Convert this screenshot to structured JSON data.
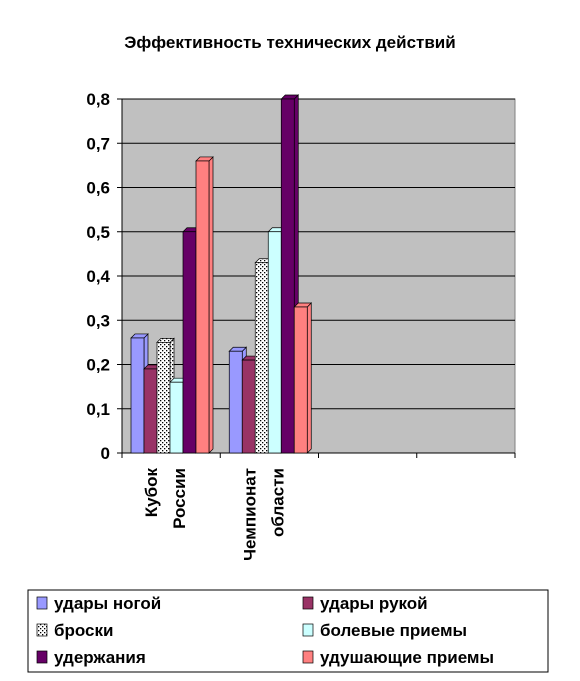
{
  "chart_data": {
    "type": "bar",
    "title": "Эффективность технических действий",
    "categories": [
      "Кубок России",
      "Чемпионат области",
      null,
      null
    ],
    "series": [
      {
        "name": "удары ногой",
        "color": "#9999ff",
        "values": [
          0.26,
          0.23,
          null,
          null
        ]
      },
      {
        "name": "удары рукой",
        "color": "#993366",
        "values": [
          0.19,
          0.21,
          null,
          null
        ]
      },
      {
        "name": "броски",
        "color": "dots",
        "values": [
          0.25,
          0.43,
          null,
          null
        ]
      },
      {
        "name": "болевые приемы",
        "color": "#ccffff",
        "values": [
          0.16,
          0.5,
          null,
          null
        ]
      },
      {
        "name": "удержания",
        "color": "#660066",
        "values": [
          0.5,
          0.8,
          null,
          null
        ]
      },
      {
        "name": "удушающие приемы",
        "color": "#ff8080",
        "values": [
          0.66,
          0.33,
          null,
          null
        ]
      }
    ],
    "ylim": [
      0,
      0.8
    ],
    "yticks": [
      0,
      {
        "value": 0.1,
        "label": "0,1"
      },
      {
        "value": 0.2,
        "label": "0,2"
      },
      {
        "value": 0.3,
        "label": "0,3"
      },
      {
        "value": 0.4,
        "label": "0,4"
      },
      {
        "value": 0.5,
        "label": "0,5"
      },
      {
        "value": 0.6,
        "label": "0,6"
      },
      {
        "value": 0.7,
        "label": "0,7"
      },
      {
        "value": 0.8,
        "label": "0,8"
      }
    ],
    "grid": true,
    "legend": "bottom"
  }
}
